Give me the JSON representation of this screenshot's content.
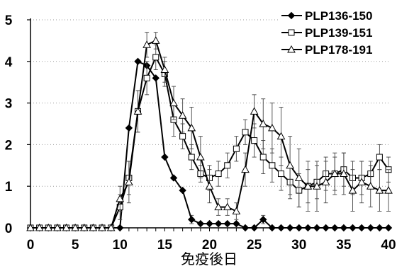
{
  "chart_data": {
    "type": "line",
    "title": "",
    "xlabel": "免疫後日",
    "ylabel": "",
    "xlim": [
      0,
      40
    ],
    "ylim": [
      0,
      5
    ],
    "xticks": [
      0,
      5,
      10,
      15,
      20,
      25,
      30,
      35,
      40
    ],
    "yticks": [
      0,
      1,
      2,
      3,
      4,
      5
    ],
    "grid": "horizontal dotted",
    "legend_position": "top-right",
    "series": [
      {
        "name": "PLP136-150",
        "marker": "diamond-filled",
        "x": [
          0,
          1,
          2,
          3,
          4,
          5,
          6,
          7,
          8,
          9,
          10,
          11,
          12,
          13,
          14,
          15,
          16,
          17,
          18,
          19,
          20,
          21,
          22,
          23,
          24,
          25,
          26,
          27,
          28,
          29,
          30,
          31,
          32,
          33,
          34,
          35,
          36,
          37,
          38,
          39,
          40
        ],
        "y": [
          0,
          0,
          0,
          0,
          0,
          0,
          0,
          0,
          0,
          0,
          0,
          2.4,
          4.0,
          3.9,
          3.6,
          1.7,
          1.2,
          0.9,
          0.2,
          0.1,
          0.1,
          0.1,
          0.1,
          0.1,
          0,
          0,
          0.2,
          0,
          0,
          0,
          0,
          0,
          0,
          0,
          0,
          0,
          0,
          0,
          0,
          0,
          0
        ],
        "err": [
          0,
          0,
          0,
          0,
          0,
          0,
          0,
          0,
          0,
          0,
          0,
          0,
          0,
          0,
          0,
          0,
          0,
          0,
          0.1,
          0,
          0,
          0,
          0,
          0,
          0,
          0,
          0.1,
          0,
          0,
          0,
          0,
          0,
          0,
          0,
          0,
          0,
          0,
          0,
          0,
          0,
          0
        ]
      },
      {
        "name": "PLP139-151",
        "marker": "square-open",
        "x": [
          0,
          1,
          2,
          3,
          4,
          5,
          6,
          7,
          8,
          9,
          10,
          11,
          12,
          13,
          14,
          15,
          16,
          17,
          18,
          19,
          20,
          21,
          22,
          23,
          24,
          25,
          26,
          27,
          28,
          29,
          30,
          31,
          32,
          33,
          34,
          35,
          36,
          37,
          38,
          39,
          40
        ],
        "y": [
          0,
          0,
          0,
          0,
          0,
          0,
          0,
          0,
          0,
          0,
          0.5,
          1.2,
          2.8,
          3.6,
          4.1,
          3.7,
          2.6,
          2.2,
          1.7,
          1.3,
          1.2,
          1.3,
          1.5,
          1.9,
          2.3,
          2.1,
          1.7,
          1.5,
          1.3,
          1.1,
          0.9,
          1.0,
          1.1,
          1.3,
          1.3,
          1.4,
          1.2,
          1.2,
          1.3,
          1.7,
          1.4
        ],
        "err": [
          0,
          0,
          0,
          0,
          0,
          0,
          0,
          0,
          0,
          0,
          0.3,
          0.4,
          0.5,
          0.4,
          0.3,
          0.3,
          0.4,
          0.3,
          0.3,
          0.2,
          0.3,
          0.3,
          0.3,
          0.3,
          0.3,
          0.4,
          0.4,
          0.4,
          0.4,
          0.4,
          0.4,
          0.4,
          0.4,
          0.4,
          0.4,
          0.4,
          0.4,
          0.4,
          0.3,
          0.3,
          0.3
        ]
      },
      {
        "name": "PLP178-191",
        "marker": "triangle-open",
        "x": [
          0,
          1,
          2,
          3,
          4,
          5,
          6,
          7,
          8,
          9,
          10,
          11,
          12,
          13,
          14,
          15,
          16,
          17,
          18,
          19,
          20,
          21,
          22,
          23,
          24,
          25,
          26,
          27,
          28,
          29,
          30,
          31,
          32,
          33,
          34,
          35,
          36,
          37,
          38,
          39,
          40
        ],
        "y": [
          0,
          0,
          0,
          0,
          0,
          0,
          0,
          0,
          0,
          0,
          0.7,
          1.1,
          2.8,
          4.4,
          4.5,
          3.8,
          3.0,
          2.7,
          2.4,
          1.7,
          1.0,
          0.5,
          0.5,
          0.4,
          1.4,
          2.8,
          2.5,
          2.4,
          2.2,
          1.5,
          1.2,
          1.0,
          1.0,
          1.1,
          1.3,
          1.3,
          0.9,
          1.1,
          1.0,
          0.9,
          0.9
        ],
        "err": [
          0,
          0,
          0,
          0,
          0,
          0,
          0,
          0,
          0,
          0,
          0.3,
          0.5,
          0.5,
          0.3,
          0.2,
          0.3,
          0.4,
          0.4,
          0.5,
          0.5,
          0.4,
          0.2,
          0.2,
          0.2,
          0.4,
          0.4,
          0.6,
          0.6,
          0.7,
          0.7,
          0.7,
          0.6,
          0.6,
          0.5,
          0.5,
          0.5,
          0.5,
          0.5,
          0.5,
          0.5,
          0.5
        ]
      }
    ]
  }
}
